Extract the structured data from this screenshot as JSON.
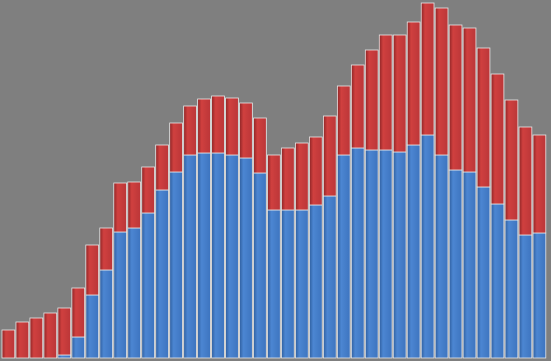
{
  "chart_data": {
    "type": "stacked_bar",
    "ylim": [
      0,
      358
    ],
    "series": [
      {
        "color": "#3f78c6",
        "values": [
          0,
          0,
          0,
          0,
          3,
          21,
          63,
          88,
          126,
          130,
          145,
          168,
          186,
          203,
          205,
          205,
          203,
          200,
          185,
          148,
          148,
          148,
          153,
          162,
          203,
          210,
          208,
          208,
          206,
          213,
          223,
          203,
          188,
          186,
          171,
          154,
          138,
          123,
          125
        ]
      },
      {
        "color": "#c23a3c",
        "values": [
          28,
          36,
          40,
          45,
          47,
          49,
          50,
          42,
          49,
          46,
          46,
          45,
          49,
          49,
          54,
          57,
          57,
          55,
          55,
          55,
          62,
          67,
          68,
          80,
          69,
          83,
          100,
          115,
          117,
          123,
          132,
          147,
          145,
          144,
          139,
          130,
          120,
          108,
          98
        ]
      }
    ]
  }
}
